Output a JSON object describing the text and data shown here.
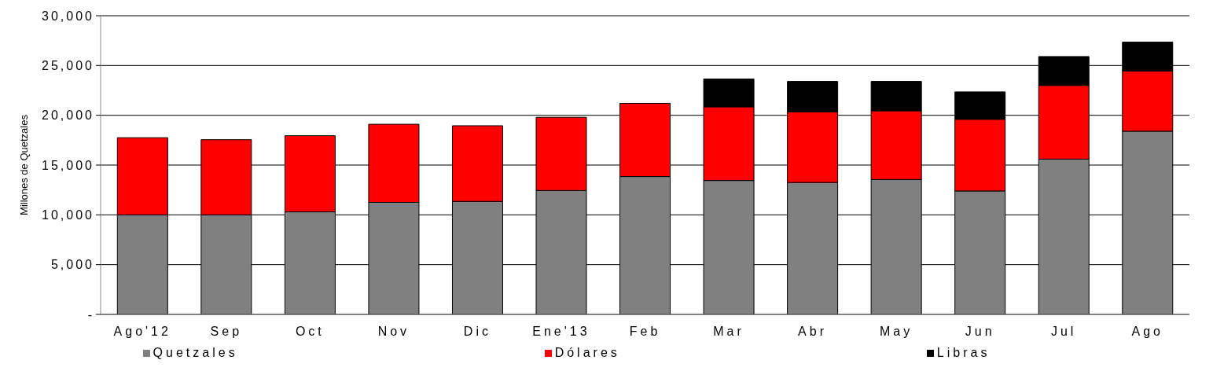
{
  "chart_data": {
    "type": "bar",
    "stacked": true,
    "ylabel": "Millones de Quetzales",
    "categories": [
      "Ago'12",
      "Sep",
      "Oct",
      "Nov",
      "Dic",
      "Ene'13",
      "Feb",
      "Mar",
      "Abr",
      "May",
      "Jun",
      "Jul",
      "Ago"
    ],
    "series": [
      {
        "name": "Quetzales",
        "color": "#808080",
        "values": [
          10000,
          10000,
          10300,
          11250,
          11350,
          12450,
          13850,
          13450,
          13250,
          13550,
          12400,
          15600,
          18400
        ]
      },
      {
        "name": "Dólares",
        "color": "#ff0000",
        "values": [
          7750,
          7550,
          7650,
          7850,
          7600,
          7350,
          7350,
          7400,
          7100,
          6900,
          7200,
          7400,
          6050
        ]
      },
      {
        "name": "Libras",
        "color": "#000000",
        "values": [
          0,
          0,
          0,
          0,
          0,
          0,
          0,
          2800,
          3050,
          2950,
          2750,
          2900,
          2900
        ]
      }
    ],
    "ylim": [
      0,
      30000
    ],
    "yticks": [
      {
        "value": 0,
        "label": "-"
      },
      {
        "value": 5000,
        "label": "5,000"
      },
      {
        "value": 10000,
        "label": "10,000"
      },
      {
        "value": 15000,
        "label": "15,000"
      },
      {
        "value": 20000,
        "label": "20,000"
      },
      {
        "value": 25000,
        "label": "25,000"
      },
      {
        "value": 30000,
        "label": "30,000"
      }
    ],
    "grid": "y",
    "legend": "bottom"
  }
}
